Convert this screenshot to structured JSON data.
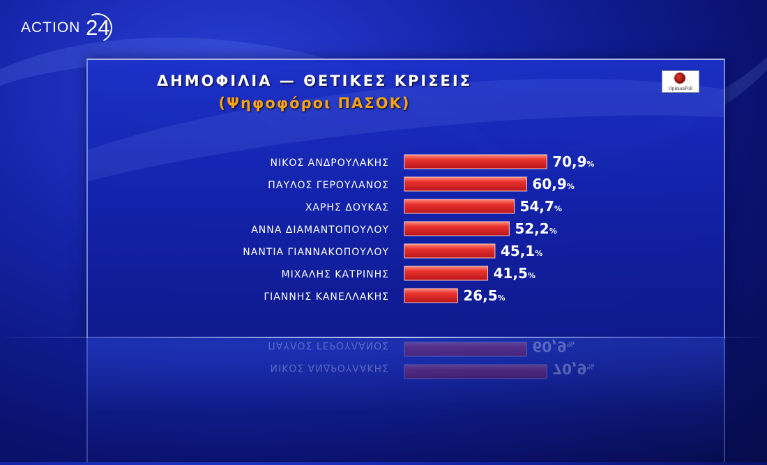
{
  "broadcaster": {
    "logo_text": "ACTION",
    "logo_number": "24"
  },
  "pollster": {
    "name": "OpinionPoll"
  },
  "colors": {
    "bar": "#e8322e",
    "title": "#ffffff",
    "subtitle": "#f7a318"
  },
  "chart_data": {
    "type": "bar",
    "orientation": "horizontal",
    "title": "ΔΗΜΟΦΙΛΙΑ — ΘΕΤΙΚΕΣ ΚΡΙΣΕΙΣ",
    "subtitle": "(Ψηφοφόροι ΠΑΣΟΚ)",
    "categories": [
      "ΝΙΚΟΣ ΑΝΔΡΟΥΛΑΚΗΣ",
      "ΠΑΥΛΟΣ ΓΕΡΟΥΛΑΝΟΣ",
      "ΧΑΡΗΣ ΔΟΥΚΑΣ",
      "ΑΝΝΑ ΔΙΑΜΑΝΤΟΠΟΥΛΟΥ",
      "ΝΑΝΤΙΑ ΓΙΑΝΝΑΚΟΠΟΥΛΟΥ",
      "ΜΙΧΑΛΗΣ ΚΑΤΡΙΝΗΣ",
      "ΓΙΑΝΝΗΣ ΚΑΝΕΛΛΑΚΗΣ"
    ],
    "values": [
      70.9,
      60.9,
      54.7,
      52.2,
      45.1,
      41.5,
      26.5
    ],
    "value_labels": [
      "70,9",
      "60,9",
      "54,7",
      "52,2",
      "45,1",
      "41,5",
      "26,5"
    ],
    "unit": "%",
    "xlim": [
      0,
      100
    ],
    "grid": false,
    "legend": "none"
  }
}
